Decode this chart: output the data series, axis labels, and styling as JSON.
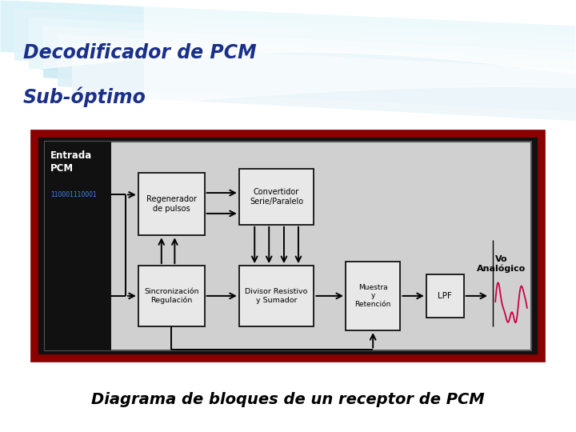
{
  "title1": "Decodificador de PCM",
  "title2": "Sub-óptimo",
  "subtitle": "Diagrama de bloques de un receptor de PCM",
  "title_color": "#1a2f8a",
  "title_fontsize": 17,
  "subtitle_fontsize": 14,
  "bg_color_top": "#b8e4f0",
  "bg_color_bottom": "#ffffff",
  "outer_border_color": "#8B0000",
  "signal_color": "#cc0044",
  "entrada_label": "Entrada\nPCM",
  "entrada_code": "110001110001",
  "vo_label": "Vo\nAnalógico"
}
